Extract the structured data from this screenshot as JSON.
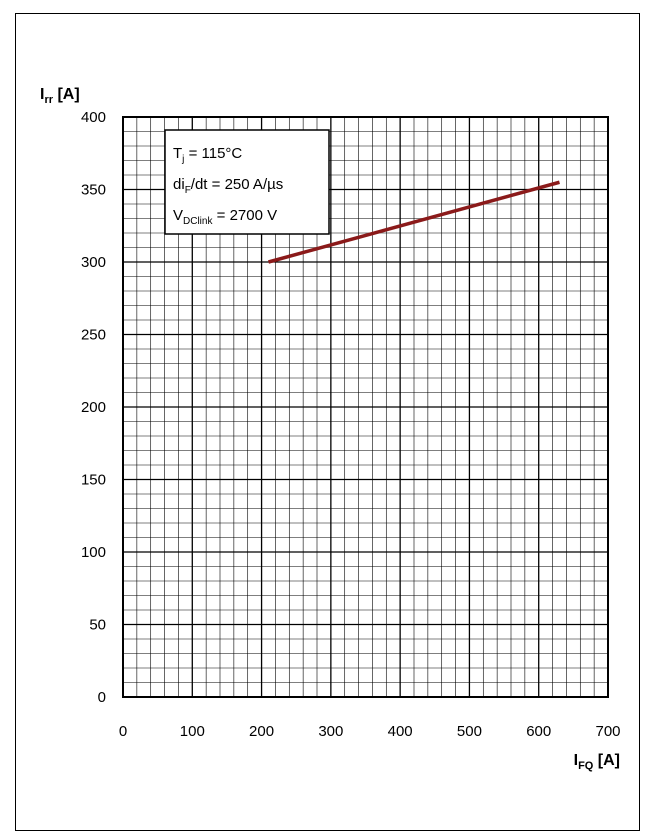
{
  "chart_data": {
    "type": "line",
    "ylabel": {
      "main": "I",
      "sub": "rr",
      "unit": " [A]"
    },
    "xlabel": {
      "main": "I",
      "sub": "FQ",
      "unit": " [A]"
    },
    "xlim": [
      0,
      700
    ],
    "ylim": [
      0,
      400
    ],
    "x_ticks": [
      "0",
      "100",
      "200",
      "300",
      "400",
      "500",
      "600",
      "700"
    ],
    "y_ticks": [
      "0",
      "50",
      "100",
      "150",
      "200",
      "250",
      "300",
      "350",
      "400"
    ],
    "grid": true,
    "series": [
      {
        "x": [
          210,
          630
        ],
        "y": [
          300,
          355
        ],
        "color": "#8b1a1a"
      }
    ],
    "annotation": {
      "line1": {
        "main": "T",
        "sub": "j",
        "rest": " = 115°C"
      },
      "line2": {
        "main": "di",
        "sub": "F",
        "rest": "/dt = 250 A/µs"
      },
      "line3": {
        "main": "V",
        "sub": "DClink",
        "rest": " = 2700 V"
      }
    }
  }
}
